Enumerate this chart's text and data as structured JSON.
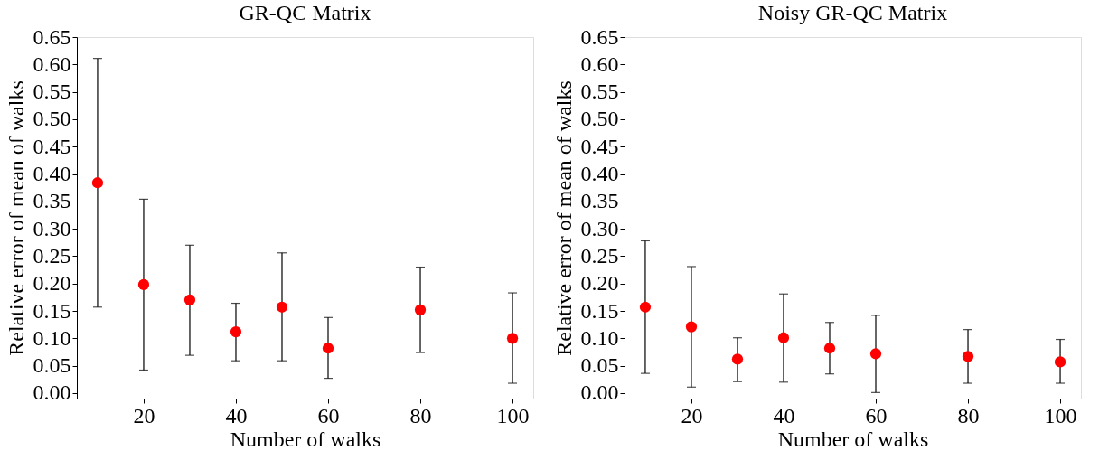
{
  "chart_data": [
    {
      "type": "scatter",
      "title": "GR-QC Matrix",
      "xlabel": "Number of walks",
      "ylabel": "Relative error of mean of walks",
      "x": [
        10,
        20,
        30,
        40,
        50,
        60,
        80,
        100
      ],
      "series": [
        {
          "color": "#ff0000",
          "values": [
            0.384,
            0.198,
            0.17,
            0.112,
            0.157,
            0.082,
            0.152,
            0.1
          ],
          "errors": [
            [
              0.157,
              0.611
            ],
            [
              0.042,
              0.354
            ],
            [
              0.069,
              0.27
            ],
            [
              0.059,
              0.164
            ],
            [
              0.059,
              0.256
            ],
            [
              0.027,
              0.138
            ],
            [
              0.074,
              0.23
            ],
            [
              0.018,
              0.183
            ]
          ]
        }
      ],
      "xlim": [
        5.5,
        104.5
      ],
      "xticks": [
        20,
        40,
        60,
        80,
        100
      ],
      "ylim": [
        -0.01,
        0.65
      ],
      "yticks": [
        {
          "value": 0,
          "label": "0.00"
        },
        0.05,
        {
          "value": 0.1,
          "label": "0.10"
        },
        0.15,
        {
          "value": 0.2,
          "label": "0.20"
        },
        0.25,
        {
          "value": 0.3,
          "label": "0.30"
        },
        0.35,
        {
          "value": 0.4,
          "label": "0.40"
        },
        0.45,
        {
          "value": 0.5,
          "label": "0.50"
        },
        0.55,
        {
          "value": 0.6,
          "label": "0.60"
        },
        0.65
      ],
      "grid": false,
      "marker": "circle",
      "legend": false
    },
    {
      "type": "scatter",
      "title": "Noisy GR-QC Matrix",
      "xlabel": "Number of walks",
      "ylabel": "Relative error of mean of walks",
      "x": [
        10,
        20,
        30,
        40,
        50,
        60,
        80,
        100
      ],
      "series": [
        {
          "color": "#ff0000",
          "values": [
            0.157,
            0.121,
            0.062,
            0.101,
            0.082,
            0.072,
            0.067,
            0.057
          ],
          "errors": [
            [
              0.036,
              0.278
            ],
            [
              0.011,
              0.231
            ],
            [
              0.021,
              0.101
            ],
            [
              0.02,
              0.181
            ],
            [
              0.035,
              0.129
            ],
            [
              0.001,
              0.142
            ],
            [
              0.018,
              0.116
            ],
            [
              0.018,
              0.098
            ]
          ]
        }
      ],
      "xlim": [
        5.5,
        104.5
      ],
      "xticks": [
        20,
        40,
        60,
        80,
        100
      ],
      "ylim": [
        -0.01,
        0.65
      ],
      "yticks": [
        {
          "value": 0,
          "label": "0.00"
        },
        0.05,
        {
          "value": 0.1,
          "label": "0.10"
        },
        0.15,
        {
          "value": 0.2,
          "label": "0.20"
        },
        0.25,
        {
          "value": 0.3,
          "label": "0.30"
        },
        0.35,
        {
          "value": 0.4,
          "label": "0.40"
        },
        0.45,
        {
          "value": 0.5,
          "label": "0.50"
        },
        0.55,
        {
          "value": 0.6,
          "label": "0.60"
        },
        0.65
      ],
      "grid": false,
      "marker": "circle",
      "legend": false
    }
  ]
}
